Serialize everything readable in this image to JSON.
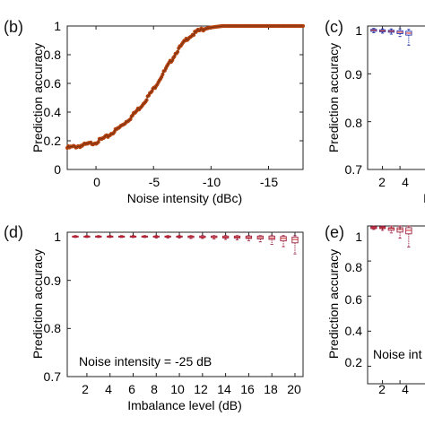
{
  "colors": {
    "b_marker": "#b5420f",
    "b_line": "#3a2418",
    "c_box": "#2233aa",
    "de_box": "#9b2040",
    "axis": "#222222"
  },
  "chart_data": [
    {
      "id": "b",
      "panel_label": "(b)",
      "type": "scatter",
      "xlabel": "Noise intensity (dBc)",
      "ylabel": "Prediction accuracy",
      "x_direction": "reversed",
      "xlim": [
        2.5,
        -18
      ],
      "ylim": [
        0,
        1
      ],
      "xticks": [
        0,
        -5,
        -10,
        -15
      ],
      "xtick_labels": [
        "0",
        "-5",
        "-10",
        "-15"
      ],
      "yticks": [
        0,
        0.2,
        0.4,
        0.6,
        0.8,
        1
      ],
      "ytick_labels": [
        "0",
        "0.2",
        "0.4",
        "0.6",
        "0.8",
        "1"
      ],
      "curve": {
        "x": [
          2.5,
          1,
          0,
          -1,
          -2,
          -3,
          -4,
          -5,
          -6,
          -7,
          -8,
          -9,
          -10,
          -11,
          -12,
          -14,
          -16,
          -18
        ],
        "y": [
          0.15,
          0.17,
          0.19,
          0.23,
          0.29,
          0.36,
          0.45,
          0.56,
          0.69,
          0.82,
          0.92,
          0.97,
          0.99,
          1.0,
          1.0,
          1.0,
          1.0,
          1.0
        ]
      }
    },
    {
      "id": "c",
      "panel_label": "(c)",
      "type": "box",
      "xlabel": "I",
      "ylabel": "Prediction accuracy",
      "ylim": [
        0.7,
        1.0
      ],
      "xticks": [
        2,
        4
      ],
      "xtick_labels": [
        "2",
        "4"
      ],
      "yticks": [
        0.7,
        0.8,
        0.9,
        1
      ],
      "ytick_labels": [
        "0.7",
        "0.8",
        "0.9",
        "1"
      ],
      "x": [
        1,
        2,
        3,
        4,
        5
      ],
      "median": [
        0.991,
        0.99,
        0.989,
        0.987,
        0.985
      ],
      "q1": [
        0.989,
        0.988,
        0.987,
        0.984,
        0.981
      ],
      "q3": [
        0.993,
        0.992,
        0.991,
        0.99,
        0.989
      ],
      "low": [
        0.986,
        0.985,
        0.983,
        0.978,
        0.96
      ],
      "high": [
        0.995,
        0.994,
        0.994,
        0.994,
        0.993
      ]
    },
    {
      "id": "d",
      "panel_label": "(d)",
      "type": "box",
      "xlabel": "Imbalance level (dB)",
      "ylabel": "Prediction accuracy",
      "annotation": "Noise intensity = -25 dB",
      "ylim": [
        0.7,
        1.0
      ],
      "xlim": [
        0.3,
        20.7
      ],
      "xticks": [
        2,
        4,
        6,
        8,
        10,
        12,
        14,
        16,
        18,
        20
      ],
      "xtick_labels": [
        "2",
        "4",
        "6",
        "8",
        "10",
        "12",
        "14",
        "16",
        "18",
        "20"
      ],
      "yticks": [
        0.7,
        0.8,
        0.9,
        1
      ],
      "ytick_labels": [
        "0.7",
        "0.8",
        "0.9",
        "1"
      ],
      "x": [
        1,
        2,
        3,
        4,
        5,
        6,
        7,
        8,
        9,
        10,
        11,
        12,
        13,
        14,
        15,
        16,
        17,
        18,
        19,
        20
      ],
      "median": [
        0.991,
        0.991,
        0.991,
        0.991,
        0.991,
        0.991,
        0.991,
        0.991,
        0.991,
        0.991,
        0.991,
        0.99,
        0.99,
        0.99,
        0.99,
        0.989,
        0.989,
        0.988,
        0.987,
        0.985
      ],
      "q1": [
        0.99,
        0.99,
        0.99,
        0.99,
        0.99,
        0.99,
        0.99,
        0.99,
        0.99,
        0.99,
        0.989,
        0.989,
        0.989,
        0.988,
        0.988,
        0.987,
        0.986,
        0.985,
        0.982,
        0.978
      ],
      "q3": [
        0.992,
        0.992,
        0.992,
        0.992,
        0.992,
        0.992,
        0.992,
        0.992,
        0.992,
        0.992,
        0.992,
        0.992,
        0.992,
        0.992,
        0.992,
        0.992,
        0.992,
        0.992,
        0.991,
        0.99
      ],
      "low": [
        0.989,
        0.989,
        0.989,
        0.989,
        0.989,
        0.989,
        0.989,
        0.988,
        0.988,
        0.988,
        0.987,
        0.987,
        0.986,
        0.985,
        0.984,
        0.982,
        0.98,
        0.975,
        0.97,
        0.955
      ],
      "high": [
        0.993,
        0.993,
        0.993,
        0.993,
        0.993,
        0.993,
        0.993,
        0.993,
        0.993,
        0.993,
        0.993,
        0.993,
        0.993,
        0.993,
        0.993,
        0.993,
        0.993,
        0.993,
        0.993,
        0.993
      ]
    },
    {
      "id": "e",
      "panel_label": "(e)",
      "type": "box",
      "xlabel": "",
      "ylabel": "Prediction accuracy",
      "annotation": "Noise int",
      "ylim": [
        0.1,
        1.0
      ],
      "xticks": [
        2,
        4
      ],
      "xtick_labels": [
        "2",
        "4"
      ],
      "yticks": [
        0.2,
        0.4,
        0.6,
        0.8,
        1
      ],
      "ytick_labels": [
        "0.2",
        "0.4",
        "0.6",
        "0.8",
        "1"
      ],
      "x": [
        1,
        2,
        3,
        4,
        5
      ],
      "median": [
        0.99,
        0.99,
        0.985,
        0.98,
        0.975
      ],
      "q1": [
        0.985,
        0.985,
        0.975,
        0.965,
        0.955
      ],
      "q3": [
        0.995,
        0.995,
        0.99,
        0.99,
        0.99
      ],
      "low": [
        0.98,
        0.975,
        0.96,
        0.93,
        0.88
      ],
      "high": [
        1.0,
        1.0,
        1.0,
        1.0,
        1.0
      ]
    }
  ]
}
